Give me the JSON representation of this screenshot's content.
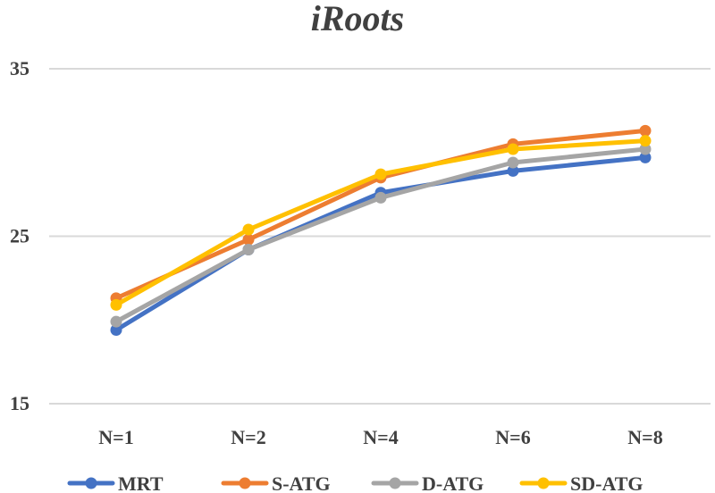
{
  "chart_data": {
    "type": "line",
    "title": "iRoots",
    "xlabel": "",
    "ylabel": "",
    "categories": [
      "N=1",
      "N=2",
      "N=4",
      "N=6",
      "N=8"
    ],
    "ylim": [
      15,
      35
    ],
    "yticks": [
      15,
      25,
      35
    ],
    "grid": true,
    "legend_position": "bottom",
    "series": [
      {
        "name": "MRT",
        "color": "#4472c4",
        "values": [
          19.4,
          24.2,
          27.6,
          28.9,
          29.7
        ]
      },
      {
        "name": "S-ATG",
        "color": "#ed7d31",
        "values": [
          21.3,
          24.8,
          28.5,
          30.5,
          31.3
        ]
      },
      {
        "name": "D-ATG",
        "color": "#a5a5a5",
        "values": [
          19.9,
          24.2,
          27.3,
          29.4,
          30.2
        ]
      },
      {
        "name": "SD-ATG",
        "color": "#ffc000",
        "values": [
          20.9,
          25.4,
          28.7,
          30.2,
          30.7
        ]
      }
    ]
  }
}
